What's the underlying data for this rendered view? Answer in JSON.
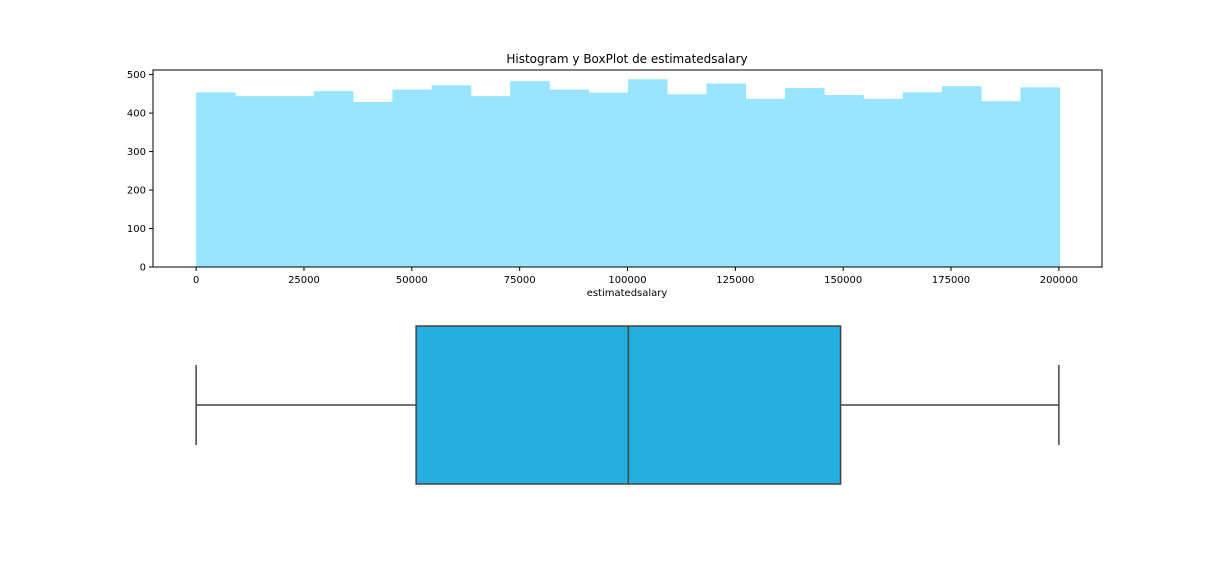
{
  "chart_data": [
    {
      "type": "histogram",
      "title": "Histogram y BoxPlot de estimatedsalary",
      "xlabel": "estimatedsalary",
      "ylabel": "",
      "bin_start": 0,
      "bin_width": 9100,
      "bin_counts": [
        454,
        444,
        444,
        457,
        429,
        461,
        472,
        444,
        483,
        461,
        453,
        488,
        449,
        477,
        437,
        465,
        447,
        437,
        454,
        470,
        431,
        467
      ],
      "xlim": [
        -10000,
        210000
      ],
      "ylim": [
        0,
        512
      ],
      "xticks": [
        0,
        25000,
        50000,
        75000,
        100000,
        125000,
        150000,
        175000,
        200000
      ],
      "yticks": [
        0,
        100,
        200,
        300,
        400,
        500
      ],
      "grid": false,
      "colors": {
        "bar": "#99e5ff"
      }
    },
    {
      "type": "boxplot",
      "whisker_low": 0,
      "q1": 51000,
      "median": 100200,
      "q3": 149400,
      "whisker_high": 200000,
      "xlim": [
        -10000,
        210000
      ],
      "colors": {
        "box": "#23afe0",
        "line": "#444444"
      }
    }
  ]
}
